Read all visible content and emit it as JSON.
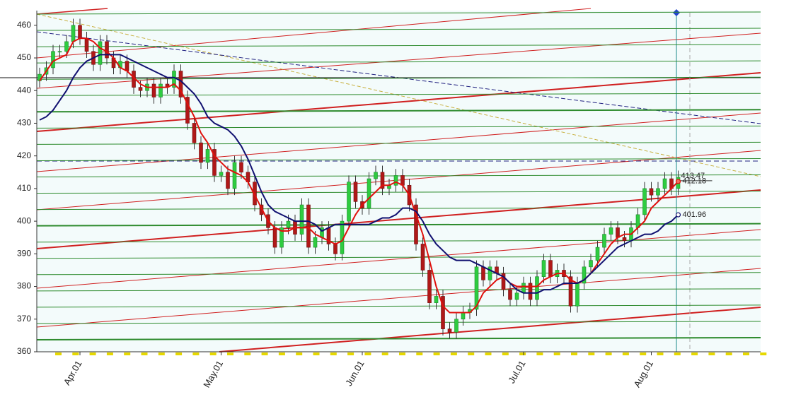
{
  "chart_data": {
    "type": "candlestick",
    "categories": [
      null,
      null,
      null,
      null,
      null,
      null,
      "Apr.01",
      null,
      null,
      null,
      null,
      null,
      null,
      null,
      null,
      null,
      null,
      null,
      null,
      null,
      null,
      null,
      null,
      null,
      null,
      null,
      null,
      "May.01",
      null,
      null,
      null,
      null,
      null,
      null,
      null,
      null,
      null,
      null,
      null,
      null,
      null,
      null,
      null,
      null,
      null,
      null,
      null,
      null,
      "Jun.01",
      null,
      null,
      null,
      null,
      null,
      null,
      null,
      null,
      null,
      null,
      null,
      null,
      null,
      null,
      null,
      null,
      null,
      null,
      null,
      null,
      null,
      null,
      null,
      "Jul.01",
      null,
      null,
      null,
      null,
      null,
      null,
      null,
      null,
      null,
      null,
      null,
      null,
      null,
      null,
      null,
      null,
      null,
      null,
      "Aug.01",
      null,
      null,
      null,
      null
    ],
    "open": [
      443,
      445,
      447,
      452,
      452,
      455,
      460,
      456,
      452,
      448,
      455,
      450,
      447,
      449,
      446,
      441,
      440,
      442,
      438,
      442,
      441,
      446,
      438,
      430,
      424,
      418,
      422,
      414,
      415,
      410,
      418,
      415,
      412,
      405,
      402,
      398,
      392,
      398,
      400,
      396,
      405,
      392,
      395,
      398,
      393,
      390,
      400,
      412,
      406,
      404,
      413,
      415,
      410,
      411,
      414,
      411,
      405,
      393,
      385,
      375,
      377,
      367,
      366,
      370,
      372,
      373,
      386,
      382,
      386,
      384,
      379,
      376,
      378,
      381,
      376,
      383,
      388,
      383,
      385,
      383,
      374,
      381,
      386,
      388,
      392,
      396,
      398,
      395,
      394,
      398,
      402,
      410,
      408,
      410,
      413,
      410
    ],
    "high": [
      447,
      449,
      454,
      454,
      457,
      462,
      462,
      458,
      454,
      457,
      457,
      452,
      451,
      451,
      448,
      443,
      444,
      444,
      444,
      444,
      448,
      448,
      440,
      432,
      426,
      424,
      424,
      417,
      417,
      420,
      420,
      417,
      414,
      407,
      404,
      400,
      400,
      402,
      402,
      407,
      407,
      397,
      400,
      400,
      395,
      402,
      414,
      414,
      408,
      415,
      417,
      417,
      413,
      416,
      416,
      413,
      407,
      395,
      387,
      379,
      379,
      369,
      372,
      374,
      375,
      388,
      388,
      388,
      388,
      386,
      381,
      380,
      383,
      383,
      385,
      390,
      390,
      387,
      387,
      385,
      383,
      388,
      390,
      394,
      398,
      400,
      400,
      397,
      400,
      404,
      412,
      412,
      412,
      415,
      415,
      415.5
    ],
    "low": [
      441,
      443,
      445,
      450,
      450,
      453,
      454,
      450,
      446,
      446,
      448,
      445,
      445,
      444,
      439,
      438,
      438,
      436,
      436,
      439,
      439,
      436,
      428,
      422,
      416,
      416,
      412,
      412,
      408,
      408,
      413,
      410,
      403,
      400,
      396,
      390,
      390,
      396,
      394,
      394,
      390,
      390,
      393,
      391,
      388,
      388,
      398,
      404,
      402,
      402,
      411,
      408,
      408,
      409,
      409,
      403,
      391,
      383,
      373,
      373,
      365,
      364,
      364,
      368,
      370,
      371,
      380,
      380,
      382,
      377,
      374,
      374,
      376,
      374,
      374,
      381,
      381,
      381,
      381,
      372,
      372,
      379,
      384,
      386,
      390,
      394,
      393,
      392,
      392,
      396,
      400,
      406,
      406,
      408,
      408,
      408
    ],
    "close": [
      445,
      447,
      452,
      452,
      455,
      460,
      456,
      452,
      448,
      455,
      450,
      447,
      449,
      446,
      441,
      440,
      442,
      438,
      442,
      441,
      446,
      438,
      430,
      424,
      418,
      422,
      414,
      415,
      410,
      418,
      415,
      412,
      405,
      402,
      398,
      392,
      398,
      400,
      396,
      405,
      392,
      395,
      398,
      393,
      390,
      400,
      412,
      406,
      404,
      413,
      415,
      410,
      411,
      414,
      411,
      405,
      393,
      385,
      375,
      377,
      367,
      366,
      370,
      372,
      373,
      386,
      382,
      386,
      384,
      379,
      376,
      378,
      381,
      376,
      383,
      388,
      383,
      385,
      383,
      374,
      381,
      386,
      388,
      392,
      396,
      398,
      395,
      394,
      398,
      402,
      410,
      408,
      410,
      413,
      410,
      413.47
    ],
    "up_color": "#2ecc40",
    "down_color": "#b01818",
    "series": [
      {
        "color": "#e0100c",
        "values": [
          443,
          446,
          449,
          450,
          451,
          455,
          456,
          456,
          455,
          453,
          452,
          450,
          447,
          446,
          444,
          442,
          441,
          441,
          441,
          441,
          442,
          440,
          436,
          432,
          427,
          424,
          420,
          418,
          416,
          415,
          414,
          412,
          408,
          404,
          400,
          398,
          397,
          397,
          398,
          398,
          398,
          396,
          395,
          394,
          393,
          394,
          398,
          402,
          405,
          407,
          409,
          411,
          411,
          412,
          411,
          408,
          402,
          396,
          388,
          380,
          374,
          372,
          372,
          372,
          372,
          374,
          378,
          380,
          382,
          383,
          381,
          380,
          380,
          380,
          380,
          382,
          383,
          384,
          384,
          382,
          381,
          382,
          384,
          387,
          390,
          393,
          395,
          396,
          396,
          398,
          400,
          404,
          406,
          408,
          410,
          412.18
        ]
      },
      {
        "color": "#101070",
        "values": [
          431,
          432,
          434,
          437,
          440,
          444,
          447,
          449,
          450,
          451,
          451,
          451,
          451,
          450,
          449,
          448,
          447,
          446,
          445,
          444,
          444,
          443,
          441,
          439,
          436,
          432,
          430,
          429,
          428,
          426,
          423,
          419,
          414,
          409,
          405,
          403,
          402,
          401,
          400,
          400,
          400,
          399,
          397,
          398,
          399,
          399,
          399,
          399,
          399,
          399,
          400,
          401,
          401,
          402,
          404,
          404,
          403,
          400,
          396,
          393,
          391,
          389,
          388,
          388,
          388,
          387,
          386,
          385,
          384,
          383,
          381,
          379,
          378,
          378,
          378,
          379,
          379,
          380,
          381,
          381,
          381,
          382,
          384,
          386,
          388,
          390,
          392,
          393,
          394,
          395,
          396,
          396,
          397,
          399,
          400,
          401.96
        ]
      }
    ],
    "ylim": [
      360,
      464.5
    ],
    "yticks": [
      360,
      370,
      380,
      390,
      400,
      410,
      420,
      430,
      440,
      450,
      460
    ]
  }
}
